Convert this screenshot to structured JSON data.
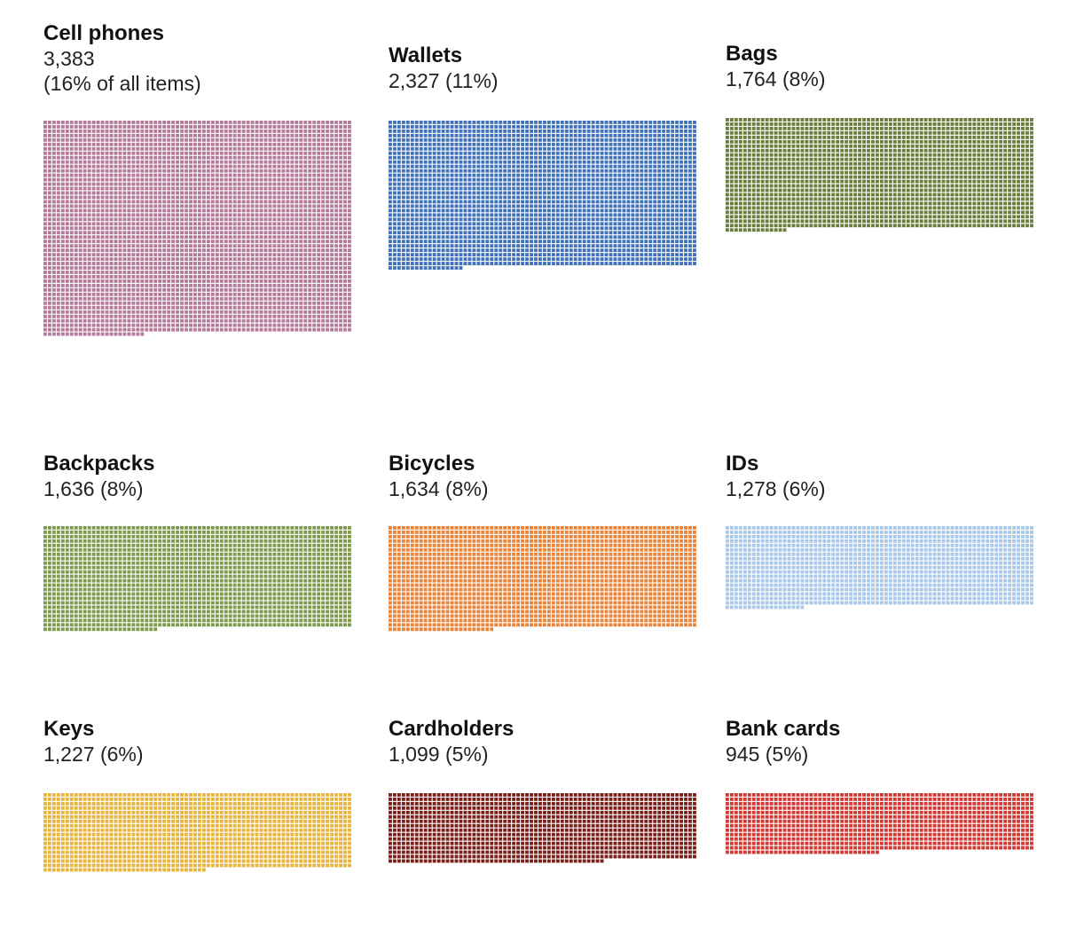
{
  "chart_data": {
    "type": "waffle",
    "unit": "items",
    "columns": 70,
    "categories": [
      {
        "name": "Cell phones",
        "value": 3383,
        "count_text": "3,383",
        "share_text": "(16% of all items)",
        "color": "#b57a9a"
      },
      {
        "name": "Wallets",
        "value": 2327,
        "count_text": "2,327 (11%)",
        "color": "#3f72b9"
      },
      {
        "name": "Bags",
        "value": 1764,
        "count_text": "1,764 (8%)",
        "color": "#6b7d3a"
      },
      {
        "name": "Backpacks",
        "value": 1636,
        "count_text": "1,636 (8%)",
        "color": "#7e9a4d"
      },
      {
        "name": "Bicycles",
        "value": 1634,
        "count_text": "1,634 (8%)",
        "color": "#e9843a"
      },
      {
        "name": "IDs",
        "value": 1278,
        "count_text": "1,278 (6%)",
        "color": "#a9c8ea"
      },
      {
        "name": "Keys",
        "value": 1227,
        "count_text": "1,227 (6%)",
        "color": "#e8b440"
      },
      {
        "name": "Cardholders",
        "value": 1099,
        "count_text": "1,099 (5%)",
        "color": "#7a1f1a"
      },
      {
        "name": "Bank cards",
        "value": 945,
        "count_text": "945 (5%)",
        "color": "#d13a34"
      }
    ]
  }
}
